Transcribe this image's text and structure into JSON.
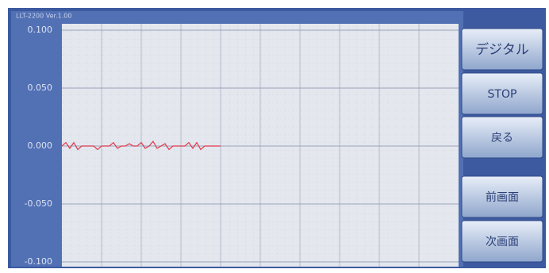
{
  "header": {
    "title": "LLT-2200 Ver.1.00"
  },
  "chart_data": {
    "type": "line",
    "x": [
      0,
      1,
      2,
      3,
      4,
      5,
      6,
      7,
      8,
      9,
      10,
      11,
      12,
      13,
      14,
      15,
      16,
      17,
      18,
      19,
      20,
      21,
      22,
      23,
      24,
      25,
      26,
      27,
      28,
      29,
      30,
      31,
      32,
      33,
      34,
      35,
      36,
      37,
      38,
      39,
      40
    ],
    "values": [
      0,
      0.003,
      -0.002,
      0.003,
      -0.003,
      0,
      0,
      0,
      0,
      -0.003,
      0,
      0,
      0,
      0.003,
      -0.002,
      0,
      0,
      0.002,
      0,
      0,
      0.003,
      -0.002,
      0,
      0.004,
      -0.002,
      0,
      0.002,
      -0.003,
      0,
      0,
      0,
      0,
      0.003,
      -0.002,
      0.003,
      -0.003,
      0,
      0,
      0,
      0,
      0
    ],
    "color": "#e03a4e",
    "xlim": [
      0,
      100
    ],
    "ylim": [
      -0.1,
      0.1
    ],
    "yticks": [
      {
        "value": 0.1,
        "label": "0.100"
      },
      {
        "value": 0.05,
        "label": "0.050"
      },
      {
        "value": 0,
        "label": "0.000"
      },
      {
        "value": -0.05,
        "label": "-0.050"
      },
      {
        "value": -0.1,
        "label": "-0.100"
      }
    ],
    "grid": true
  },
  "buttons": [
    "デジタル",
    "STOP",
    "戻る",
    "前画面",
    "次画面"
  ]
}
